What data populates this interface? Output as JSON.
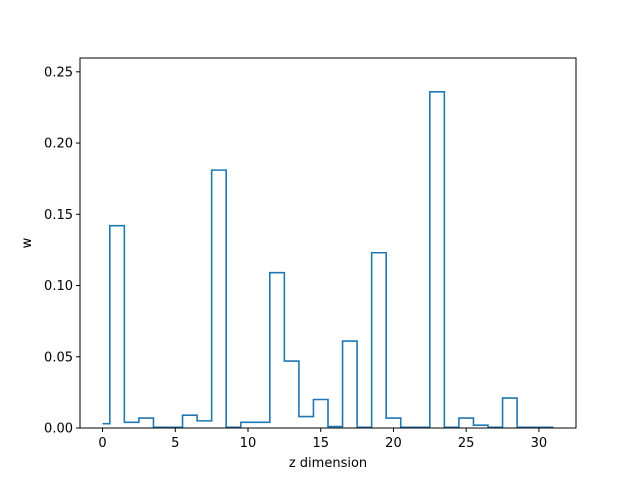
{
  "chart_data": {
    "type": "bar",
    "style": "step-outline histogram",
    "title": "",
    "xlabel": "z dimension",
    "ylabel": "w",
    "xlim": [
      -1.55,
      32.55
    ],
    "ylim": [
      0,
      0.2597
    ],
    "x_ticks": [
      0,
      5,
      10,
      15,
      20,
      25,
      30
    ],
    "y_ticks": [
      0.0,
      0.05,
      0.1,
      0.15,
      0.2,
      0.25
    ],
    "x_tick_labels": [
      "0",
      "5",
      "10",
      "15",
      "20",
      "25",
      "30"
    ],
    "y_tick_labels": [
      "0.00",
      "0.05",
      "0.10",
      "0.15",
      "0.20",
      "0.25"
    ],
    "x": [
      0,
      1,
      2,
      3,
      4,
      5,
      6,
      7,
      8,
      9,
      10,
      11,
      12,
      13,
      14,
      15,
      16,
      17,
      18,
      19,
      20,
      21,
      22,
      23,
      24,
      25,
      26,
      27,
      28,
      29,
      30,
      31
    ],
    "values": [
      0.003,
      0.142,
      0.004,
      0.007,
      0.0005,
      0.0005,
      0.009,
      0.005,
      0.181,
      0.0005,
      0.004,
      0.004,
      0.109,
      0.047,
      0.008,
      0.02,
      0.001,
      0.061,
      0.0005,
      0.123,
      0.007,
      0.0005,
      0.0005,
      0.236,
      0.0005,
      0.007,
      0.002,
      0.0005,
      0.021,
      0.0005,
      0.0005,
      0.0005
    ],
    "line_color": "#1f77b4",
    "grid": false
  }
}
